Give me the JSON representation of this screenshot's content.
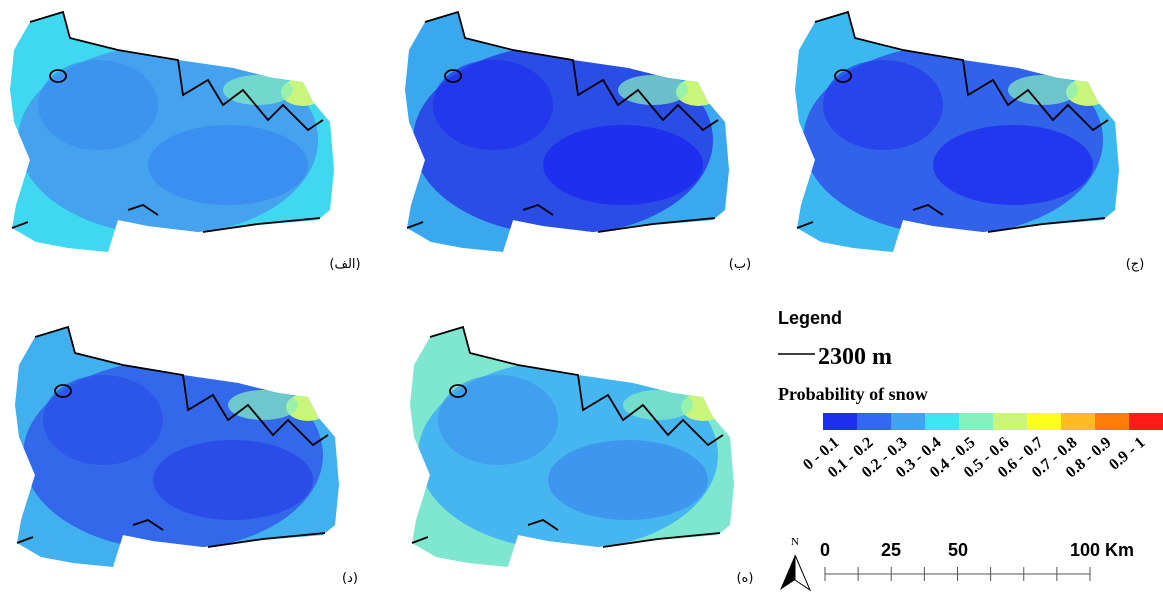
{
  "panels": [
    {
      "label": "(الف)"
    },
    {
      "label": "(ب)"
    },
    {
      "label": "(ج)"
    },
    {
      "label": "(د)"
    },
    {
      "label": "(ه)"
    }
  ],
  "legend": {
    "title": "Legend",
    "contour": "2300 m",
    "classes_title": "Probability of snow",
    "classes": [
      {
        "label": "0 - 0.1",
        "color": "#1f2ff0"
      },
      {
        "label": "0.1 - 0.2",
        "color": "#3366f2"
      },
      {
        "label": "0.2 - 0.3",
        "color": "#42a2ee"
      },
      {
        "label": "0.3 - 0.4",
        "color": "#3ae6f0"
      },
      {
        "label": "0.4 - 0.5",
        "color": "#86f0bf"
      },
      {
        "label": "0.5 - 0.6",
        "color": "#c8f57a"
      },
      {
        "label": "0.6 - 0.7",
        "color": "#ffff1a"
      },
      {
        "label": "0.7 - 0.8",
        "color": "#ffbc22"
      },
      {
        "label": "0.8 - 0.9",
        "color": "#ff7c0a"
      },
      {
        "label": "0.9 - 1",
        "color": "#ff1a1a"
      }
    ]
  },
  "north": "N",
  "scale_bar": {
    "labels": [
      "0",
      "25",
      "50",
      "100 Km"
    ]
  }
}
